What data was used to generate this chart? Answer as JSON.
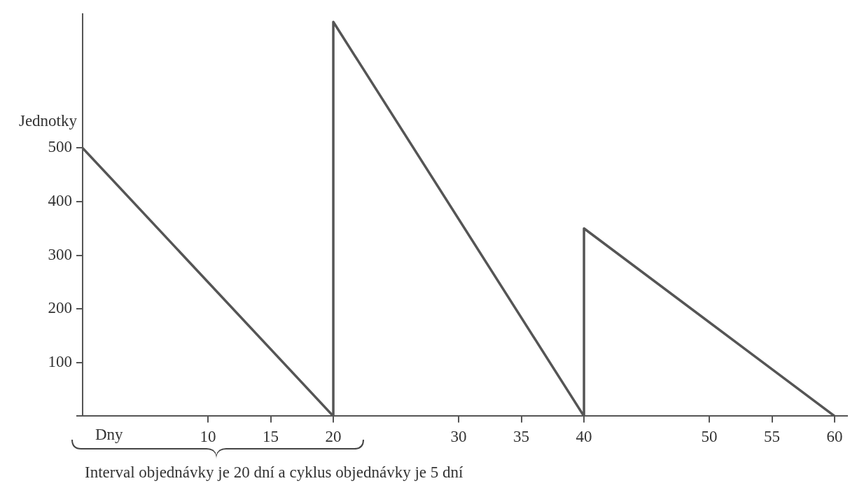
{
  "chart_data": {
    "type": "line",
    "ylabel": "Jednotky",
    "xlabel": "Dny",
    "x": [
      0,
      20,
      20,
      40,
      40,
      60
    ],
    "series": [
      {
        "color": "#555555",
        "values": [
          500,
          0,
          735,
          0,
          350,
          0
        ]
      }
    ],
    "xlim": [
      0,
      61
    ],
    "ylim": [
      0,
      750
    ],
    "xticks": [
      10,
      15,
      20,
      30,
      35,
      40,
      50,
      55,
      60
    ],
    "yticks": [
      {
        "value": 0,
        "label": null
      },
      100,
      200,
      300,
      400,
      500
    ],
    "annotations": [
      "Interval objednávky je 20 dní a cyklus objednávky je 5 dní"
    ],
    "grid": false,
    "legend": false,
    "marker": "none",
    "line_style": "solid"
  }
}
